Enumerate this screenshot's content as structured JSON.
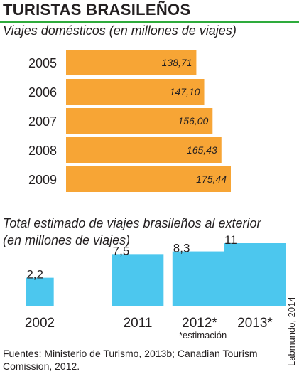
{
  "title": "TURISTAS BRASILEÑOS",
  "colors": {
    "title_rule": "#2eab3c",
    "domestic_bar": "#f7a535",
    "abroad_box": "#4cc7ee",
    "text": "#231f20"
  },
  "chart_data": [
    {
      "type": "bar",
      "orientation": "horizontal",
      "title": "Viajes domésticos (en millones de viajes)",
      "categories": [
        "2005",
        "2006",
        "2007",
        "2008",
        "2009"
      ],
      "values": [
        138.71,
        147.1,
        156.0,
        165.43,
        175.44
      ],
      "value_labels": [
        "138,71",
        "147,10",
        "156,00",
        "165,43",
        "175,44"
      ],
      "xlim": [
        0,
        175.44
      ],
      "grid": false,
      "legend": "none"
    },
    {
      "type": "bar",
      "style": "squares",
      "title_lines": [
        "Total estimado de viajes brasileños al exterior",
        "(en millones de viajes)"
      ],
      "categories": [
        "2002",
        "2011",
        "2012*",
        "2013*"
      ],
      "values": [
        2.2,
        7.5,
        8.3,
        11
      ],
      "value_labels": [
        "2,2",
        "7,5",
        "8,3",
        "11"
      ],
      "grid": false,
      "legend": "none"
    }
  ],
  "note": "*estimación",
  "source": "Fuentes: Ministerio de Turismo, 2013b; Canadian Tourism Comission, 2012.",
  "credit": "Labmundo, 2014"
}
